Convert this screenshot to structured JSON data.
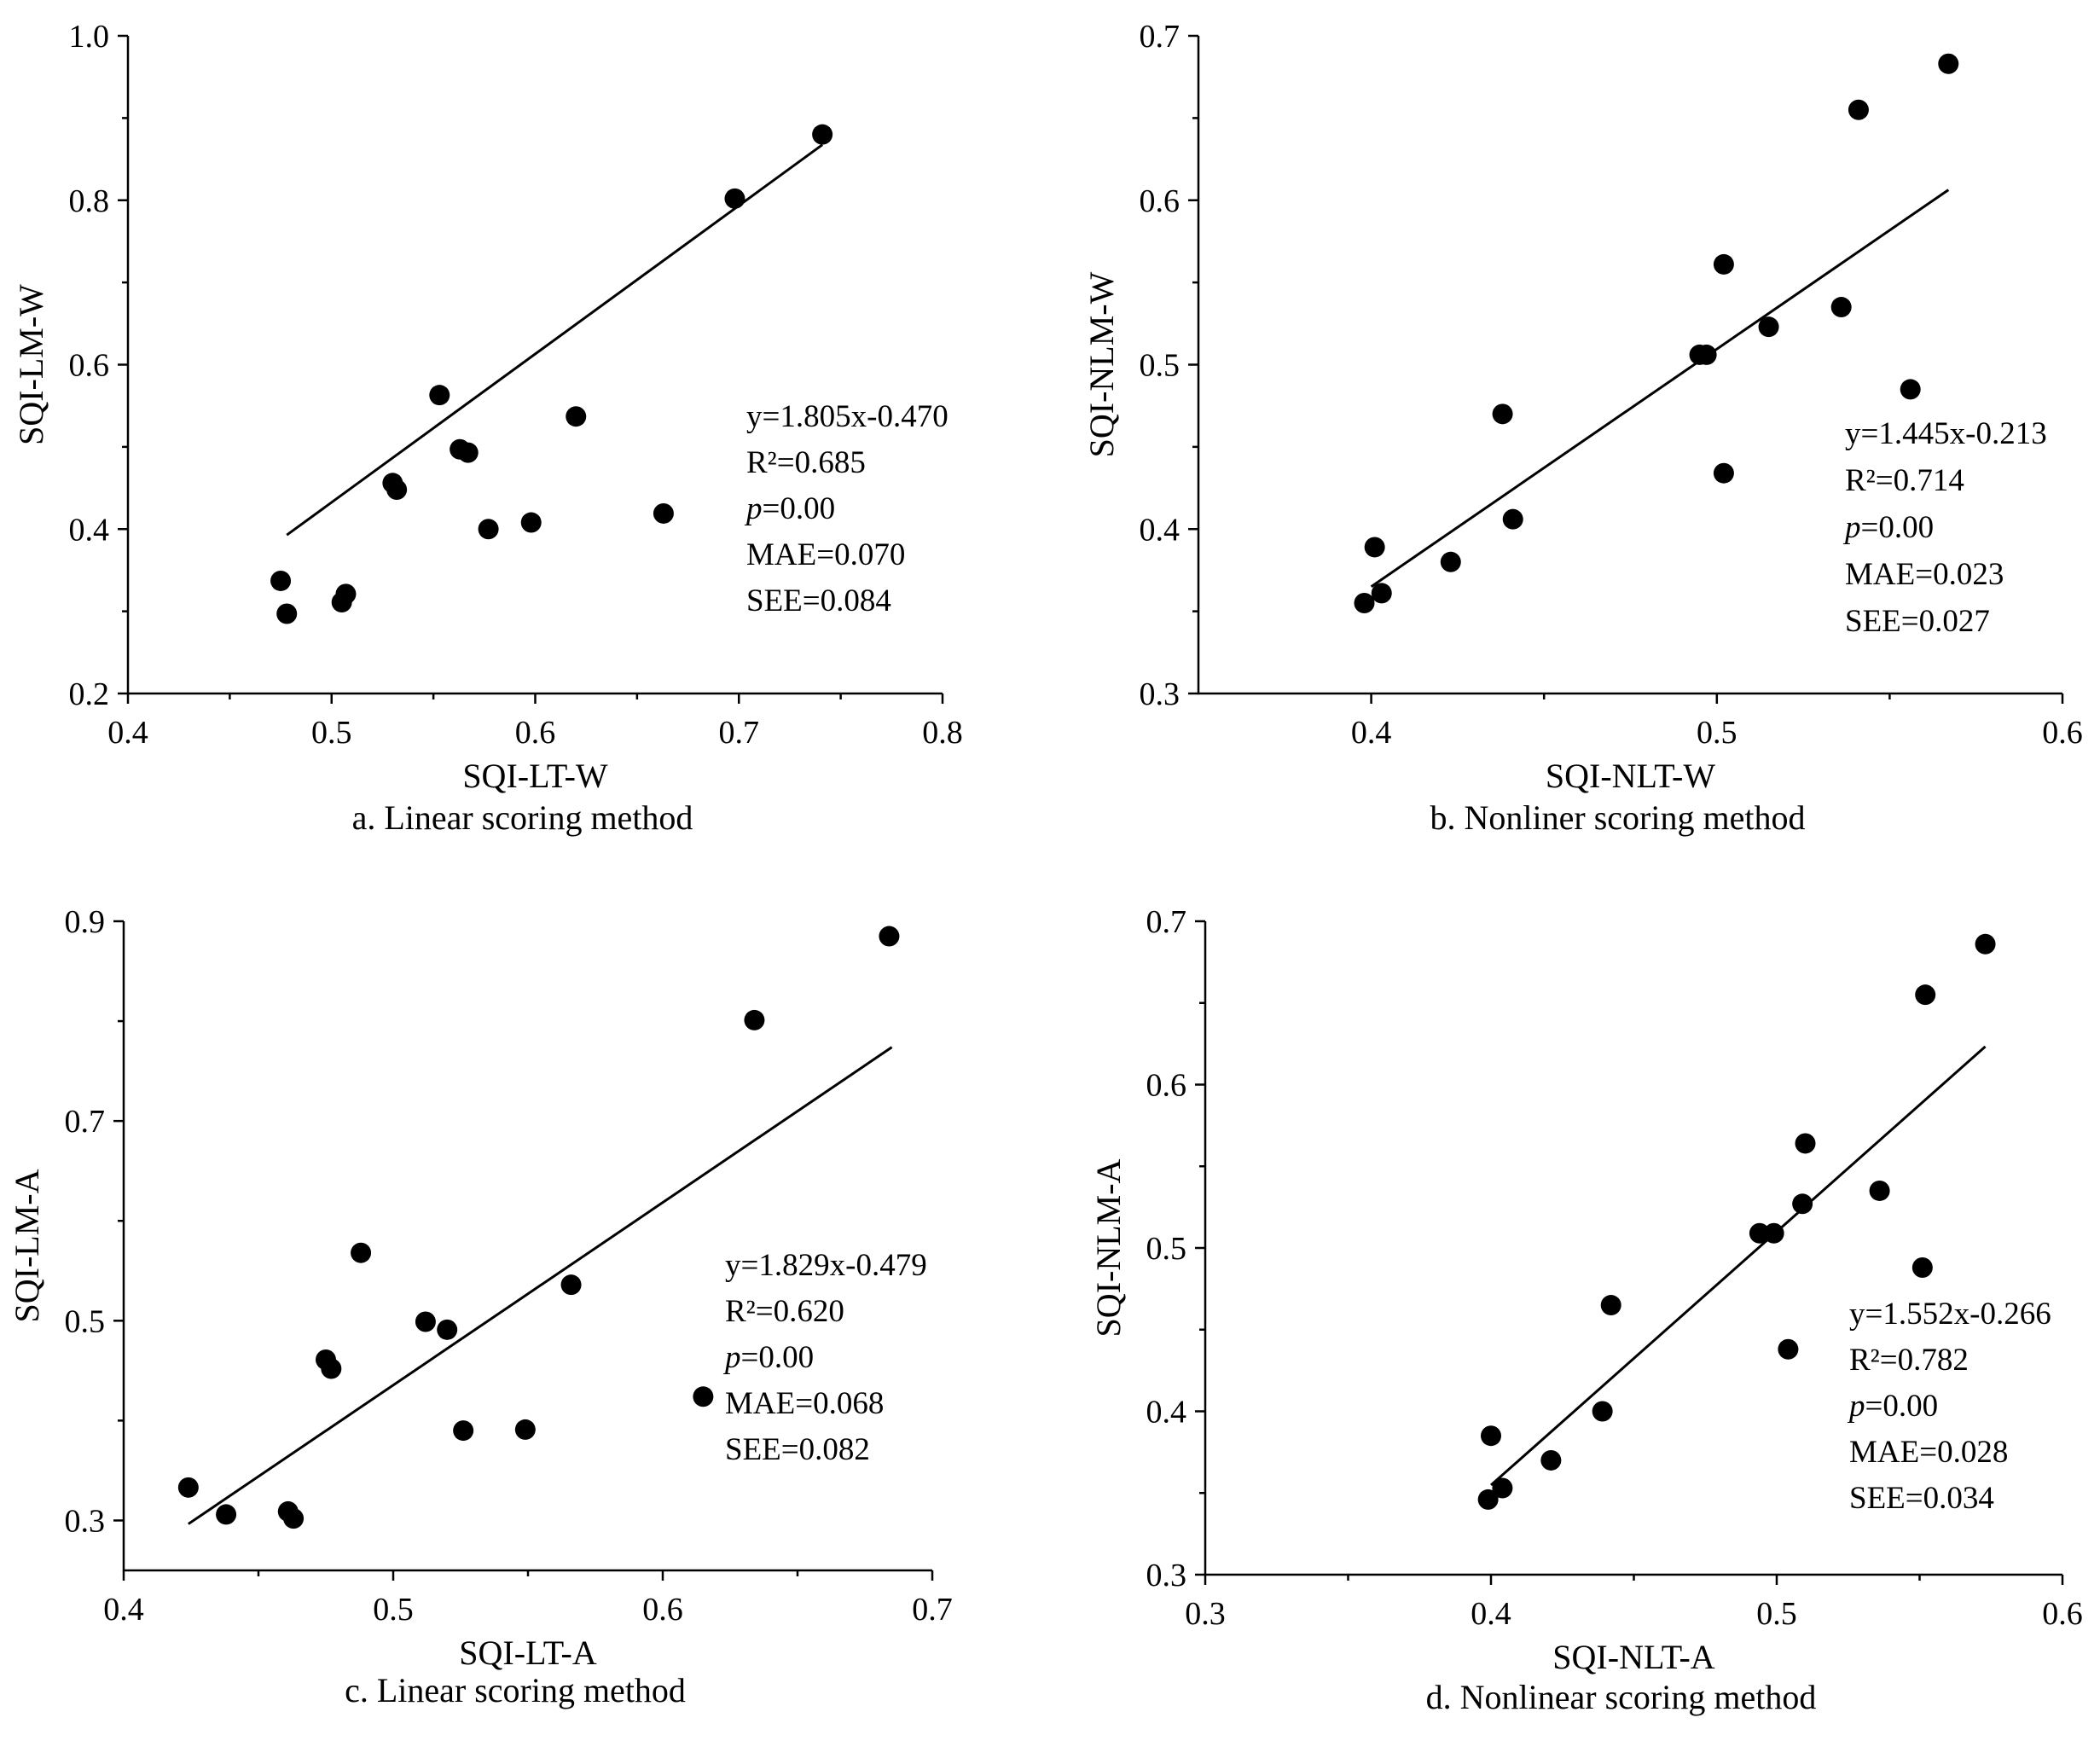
{
  "chart_data": [
    {
      "type": "scatter",
      "caption": "a. Linear scoring method",
      "xlabel": "SQI-LT-W",
      "ylabel": "SQI-LM-W",
      "xlim": [
        0.4,
        0.8
      ],
      "ylim": [
        0.2,
        1.0
      ],
      "xticks": [
        0.4,
        0.5,
        0.6,
        0.7,
        0.8
      ],
      "yticks": [
        0.2,
        0.4,
        0.6,
        0.8,
        1.0
      ],
      "xtick_labels": [
        "0.4",
        "0.5",
        "0.6",
        "0.7",
        "0.8"
      ],
      "ytick_labels": [
        "0.2",
        "0.4",
        "0.6",
        "0.8",
        "1.0"
      ],
      "x": [
        0.475,
        0.478,
        0.505,
        0.507,
        0.53,
        0.532,
        0.553,
        0.563,
        0.567,
        0.577,
        0.598,
        0.62,
        0.663,
        0.698,
        0.741
      ],
      "y": [
        0.337,
        0.297,
        0.311,
        0.321,
        0.456,
        0.448,
        0.563,
        0.497,
        0.493,
        0.4,
        0.408,
        0.537,
        0.419,
        0.802,
        0.88
      ],
      "fit": {
        "slope": 1.805,
        "intercept": -0.47,
        "x_range": [
          0.478,
          0.741
        ]
      },
      "stats": {
        "equation": "y=1.805x-0.470",
        "r2": "R²=0.685",
        "p_italic": "p",
        "p_rest": "=0.00",
        "mae": "MAE=0.070",
        "see": "SEE=0.084"
      }
    },
    {
      "type": "scatter",
      "caption": "b. Nonliner scoring method",
      "xlabel": "SQI-NLT-W",
      "ylabel": "SQI-NLM-W",
      "xlim": [
        0.35,
        0.6
      ],
      "ylim": [
        0.3,
        0.7
      ],
      "xticks": [
        0.4,
        0.5,
        0.6
      ],
      "yticks": [
        0.3,
        0.4,
        0.5,
        0.6,
        0.7
      ],
      "xtick_labels": [
        "0.4",
        "0.5",
        "0.6"
      ],
      "ytick_labels": [
        "0.3",
        "0.4",
        "0.5",
        "0.6",
        "0.7"
      ],
      "x": [
        0.398,
        0.401,
        0.403,
        0.423,
        0.438,
        0.441,
        0.495,
        0.497,
        0.502,
        0.502,
        0.515,
        0.536,
        0.541,
        0.556,
        0.567
      ],
      "y": [
        0.355,
        0.389,
        0.361,
        0.38,
        0.47,
        0.406,
        0.506,
        0.506,
        0.561,
        0.434,
        0.523,
        0.535,
        0.655,
        0.485,
        0.683
      ],
      "fit": {
        "slope": 1.445,
        "intercept": -0.213,
        "x_range": [
          0.4,
          0.567
        ]
      },
      "stats": {
        "equation": "y=1.445x-0.213",
        "r2": "R²=0.714",
        "p_italic": "p",
        "p_rest": "=0.00",
        "mae": "MAE=0.023",
        "see": "SEE=0.027"
      }
    },
    {
      "type": "scatter",
      "caption": "c. Linear scoring method",
      "xlabel": "SQI-LT-A",
      "ylabel": "SQI-LM-A",
      "xlim": [
        0.4,
        0.7
      ],
      "ylim": [
        0.25,
        0.9
      ],
      "xticks": [
        0.4,
        0.5,
        0.6,
        0.7
      ],
      "yticks": [
        0.3,
        0.5,
        0.7,
        0.9
      ],
      "xtick_labels": [
        "0.4",
        "0.5",
        "0.6",
        "0.7"
      ],
      "ytick_labels": [
        "0.3",
        "0.5",
        "0.7",
        "0.9"
      ],
      "x": [
        0.424,
        0.438,
        0.461,
        0.463,
        0.475,
        0.477,
        0.488,
        0.512,
        0.52,
        0.526,
        0.549,
        0.566,
        0.615,
        0.634,
        0.684
      ],
      "y": [
        0.333,
        0.306,
        0.309,
        0.302,
        0.461,
        0.452,
        0.568,
        0.499,
        0.491,
        0.39,
        0.391,
        0.536,
        0.424,
        0.801,
        0.885
      ],
      "fit": {
        "slope": 1.829,
        "intercept": -0.479,
        "x_range": [
          0.424,
          0.685
        ]
      },
      "stats": {
        "equation": "y=1.829x-0.479",
        "r2": "R²=0.620",
        "p_italic": "p",
        "p_rest": "=0.00",
        "mae": "MAE=0.068",
        "see": "SEE=0.082"
      }
    },
    {
      "type": "scatter",
      "caption": "d. Nonlinear scoring method",
      "xlabel": "SQI-NLT-A",
      "ylabel": "SQI-NLM-A",
      "xlim": [
        0.3,
        0.6
      ],
      "ylim": [
        0.3,
        0.7
      ],
      "xticks": [
        0.3,
        0.4,
        0.5,
        0.6
      ],
      "yticks": [
        0.3,
        0.4,
        0.5,
        0.6,
        0.7
      ],
      "xtick_labels": [
        "0.3",
        "0.4",
        "0.5",
        "0.6"
      ],
      "ytick_labels": [
        "0.3",
        "0.4",
        "0.5",
        "0.6",
        "0.7"
      ],
      "x": [
        0.399,
        0.4,
        0.404,
        0.421,
        0.439,
        0.442,
        0.494,
        0.499,
        0.504,
        0.509,
        0.51,
        0.536,
        0.551,
        0.552,
        0.573
      ],
      "y": [
        0.346,
        0.385,
        0.353,
        0.37,
        0.4,
        0.465,
        0.509,
        0.509,
        0.438,
        0.527,
        0.564,
        0.535,
        0.488,
        0.655,
        0.686
      ],
      "fit": {
        "slope": 1.552,
        "intercept": -0.266,
        "x_range": [
          0.4,
          0.573
        ]
      },
      "stats": {
        "equation": "y=1.552x-0.266",
        "r2": "R²=0.782",
        "p_italic": "p",
        "p_rest": "=0.00",
        "mae": "MAE=0.028",
        "see": "SEE=0.034"
      }
    }
  ]
}
